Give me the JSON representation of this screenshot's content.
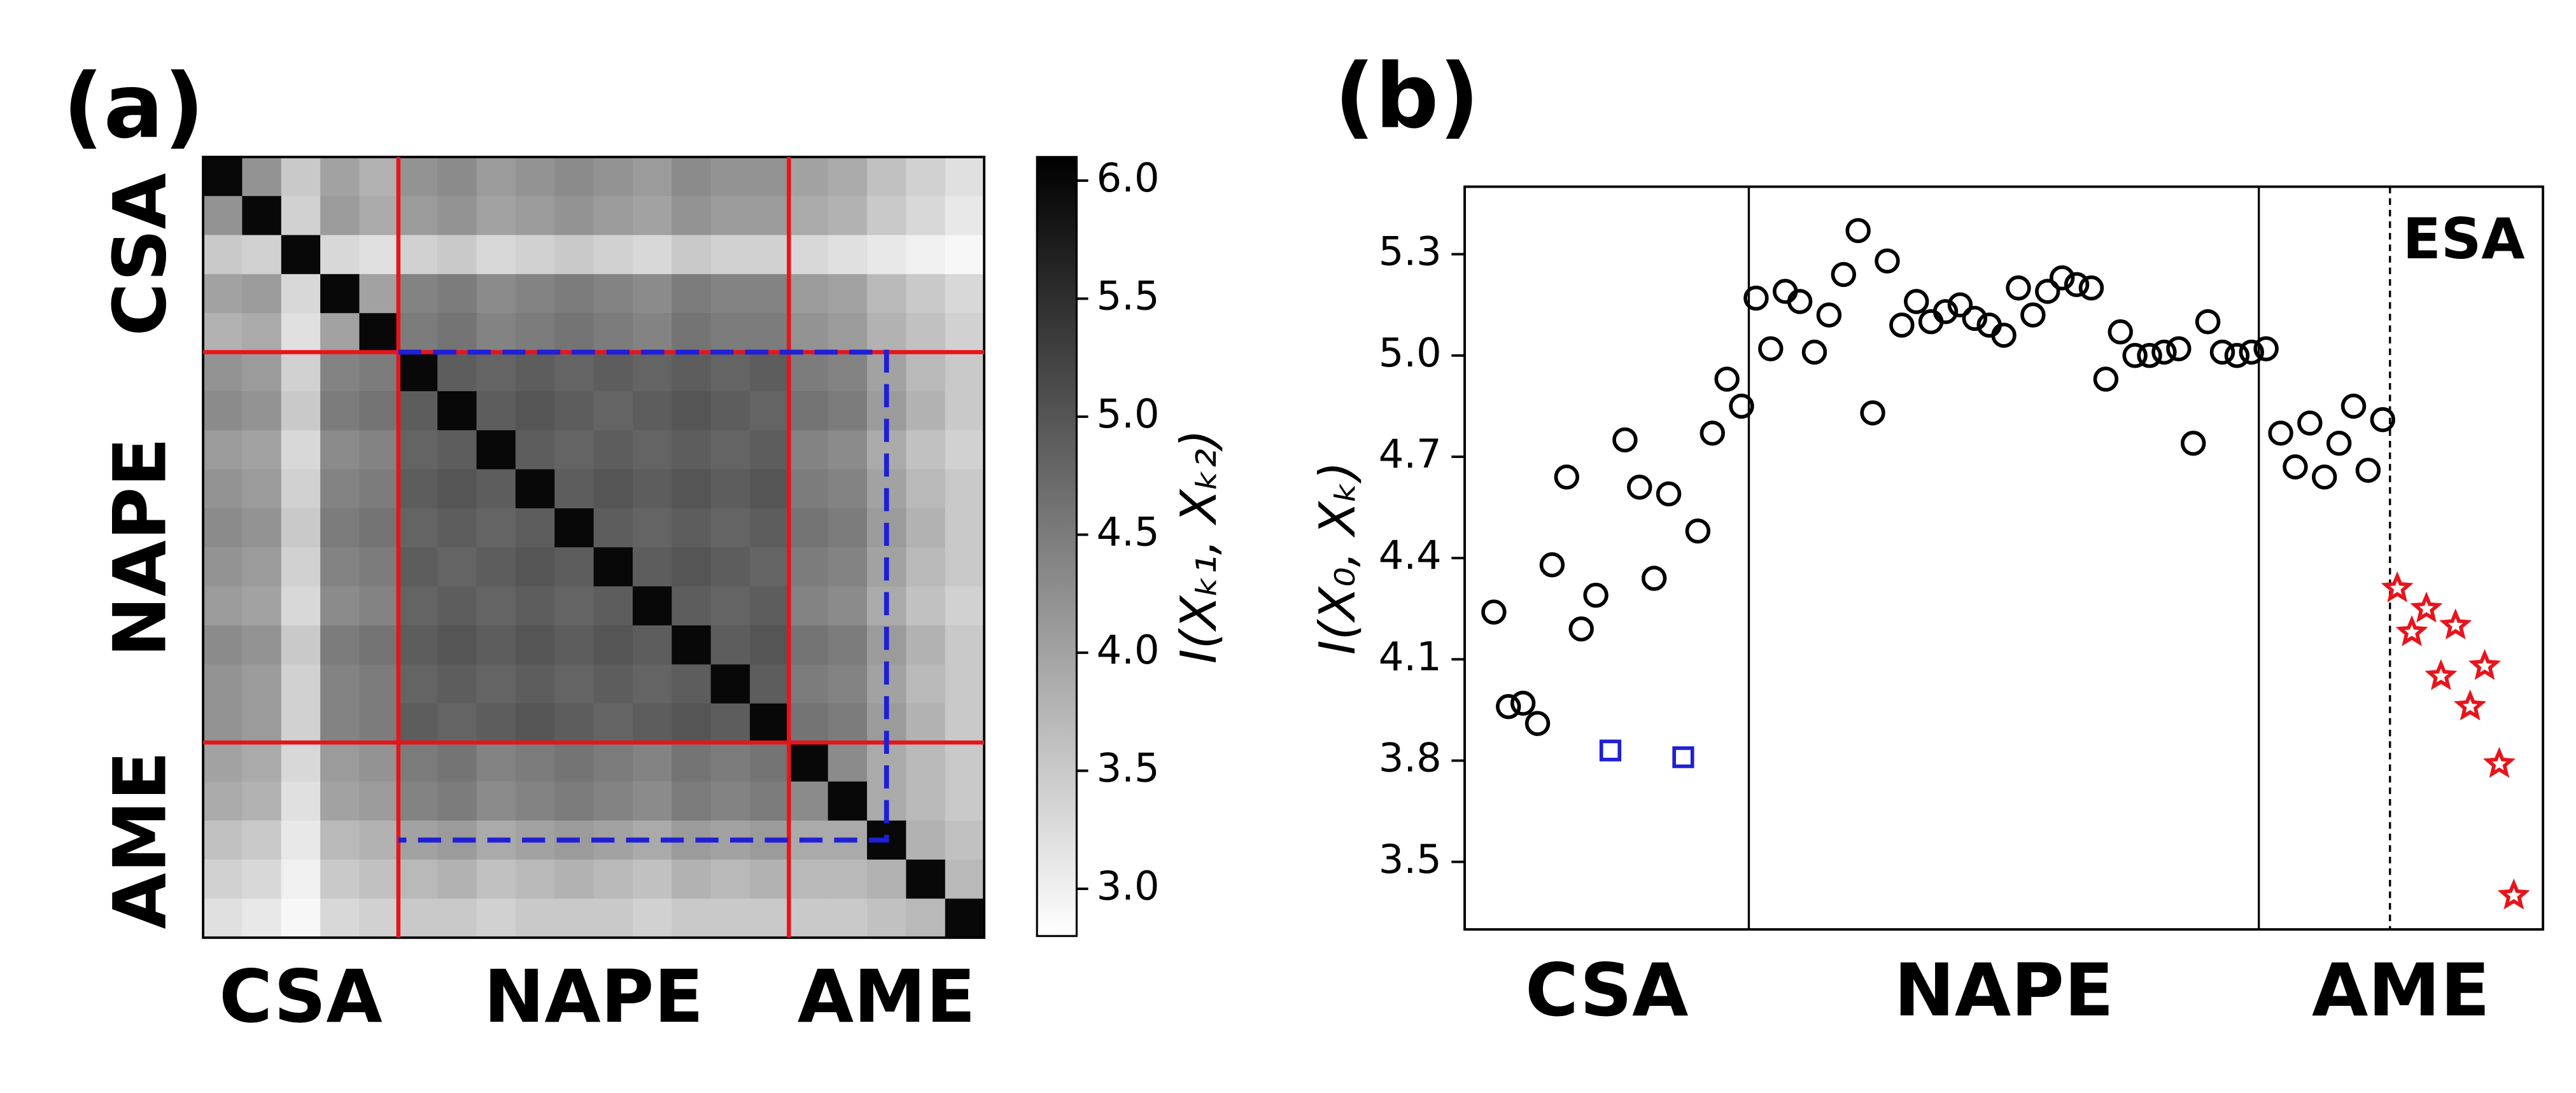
{
  "chart_data": [
    {
      "type": "heatmap",
      "panel": "(a)",
      "groups": [
        "CSA",
        "NAPE",
        "AME"
      ],
      "boundaries": [
        5,
        15
      ],
      "highlight": [
        5,
        17.5
      ],
      "colormap": "gray_r",
      "clim": [
        2.8,
        6.1
      ],
      "cticks": [
        {
          "value": 3.0,
          "label": "3.0"
        },
        {
          "value": 3.5,
          "label": "3.5"
        },
        {
          "value": 4.0,
          "label": "4.0"
        },
        {
          "value": 4.5,
          "label": "4.5"
        },
        {
          "value": 5.0,
          "label": "5.0"
        },
        {
          "value": 5.5,
          "label": "5.5"
        },
        {
          "value": 6.0,
          "label": "6.0"
        }
      ],
      "colorbar_label": "I(Xₖ₁, Xₖ₂)",
      "matrix": [
        [
          6.0,
          4.2,
          3.5,
          4.0,
          3.8,
          4.2,
          4.3,
          4.1,
          4.2,
          4.3,
          4.2,
          4.1,
          4.3,
          4.2,
          4.2,
          4.0,
          3.9,
          3.6,
          3.4,
          3.2
        ],
        [
          4.2,
          6.0,
          3.4,
          4.1,
          3.9,
          4.1,
          4.2,
          4.0,
          4.1,
          4.2,
          4.1,
          4.0,
          4.2,
          4.1,
          4.1,
          3.9,
          3.8,
          3.5,
          3.3,
          3.1
        ],
        [
          3.5,
          3.4,
          6.0,
          3.3,
          3.2,
          3.4,
          3.5,
          3.3,
          3.4,
          3.5,
          3.4,
          3.3,
          3.5,
          3.4,
          3.4,
          3.3,
          3.2,
          3.1,
          3.0,
          2.9
        ],
        [
          4.0,
          4.1,
          3.3,
          6.0,
          4.0,
          4.4,
          4.5,
          4.3,
          4.4,
          4.5,
          4.4,
          4.3,
          4.5,
          4.4,
          4.4,
          4.1,
          4.0,
          3.7,
          3.5,
          3.3
        ],
        [
          3.8,
          3.9,
          3.2,
          4.0,
          6.0,
          4.5,
          4.6,
          4.4,
          4.5,
          4.6,
          4.5,
          4.4,
          4.6,
          4.5,
          4.5,
          4.2,
          4.1,
          3.8,
          3.6,
          3.4
        ],
        [
          4.2,
          4.1,
          3.4,
          4.4,
          4.5,
          6.0,
          4.9,
          4.8,
          4.9,
          4.8,
          4.9,
          4.8,
          4.9,
          4.8,
          4.9,
          4.5,
          4.4,
          4.0,
          3.7,
          3.5
        ],
        [
          4.3,
          4.2,
          3.5,
          4.5,
          4.6,
          4.9,
          6.0,
          4.9,
          5.0,
          4.9,
          4.8,
          4.9,
          5.0,
          4.9,
          4.8,
          4.6,
          4.5,
          4.1,
          3.8,
          3.5
        ],
        [
          4.1,
          4.0,
          3.3,
          4.3,
          4.4,
          4.8,
          4.9,
          6.0,
          4.9,
          4.8,
          4.9,
          4.8,
          4.9,
          4.8,
          4.9,
          4.4,
          4.3,
          3.9,
          3.6,
          3.4
        ],
        [
          4.2,
          4.1,
          3.4,
          4.4,
          4.5,
          4.9,
          5.0,
          4.9,
          6.0,
          4.9,
          5.0,
          4.9,
          5.0,
          4.9,
          5.0,
          4.5,
          4.4,
          4.0,
          3.7,
          3.5
        ],
        [
          4.3,
          4.2,
          3.5,
          4.5,
          4.6,
          4.8,
          4.9,
          4.8,
          4.9,
          6.0,
          4.9,
          4.8,
          4.9,
          4.8,
          4.9,
          4.6,
          4.5,
          4.1,
          3.8,
          3.5
        ],
        [
          4.2,
          4.1,
          3.4,
          4.4,
          4.5,
          4.9,
          4.8,
          4.9,
          5.0,
          4.9,
          6.0,
          4.9,
          5.0,
          4.9,
          4.8,
          4.5,
          4.4,
          4.0,
          3.7,
          3.5
        ],
        [
          4.1,
          4.0,
          3.3,
          4.3,
          4.4,
          4.8,
          4.9,
          4.8,
          4.9,
          4.8,
          4.9,
          6.0,
          4.9,
          4.8,
          4.9,
          4.4,
          4.3,
          3.9,
          3.6,
          3.4
        ],
        [
          4.3,
          4.2,
          3.5,
          4.5,
          4.6,
          4.9,
          5.0,
          4.9,
          5.0,
          4.9,
          5.0,
          4.9,
          6.0,
          4.9,
          5.0,
          4.6,
          4.5,
          4.1,
          3.8,
          3.5
        ],
        [
          4.2,
          4.1,
          3.4,
          4.4,
          4.5,
          4.8,
          4.9,
          4.8,
          4.9,
          4.8,
          4.9,
          4.8,
          4.9,
          6.0,
          4.9,
          4.5,
          4.4,
          4.0,
          3.7,
          3.5
        ],
        [
          4.2,
          4.1,
          3.4,
          4.4,
          4.5,
          4.9,
          4.8,
          4.9,
          5.0,
          4.9,
          4.8,
          4.9,
          5.0,
          4.9,
          6.0,
          4.6,
          4.5,
          4.1,
          3.8,
          3.5
        ],
        [
          4.0,
          3.9,
          3.3,
          4.1,
          4.2,
          4.5,
          4.6,
          4.4,
          4.5,
          4.6,
          4.5,
          4.4,
          4.6,
          4.5,
          4.6,
          6.0,
          4.3,
          3.9,
          3.7,
          3.5
        ],
        [
          3.9,
          3.8,
          3.2,
          4.0,
          4.1,
          4.4,
          4.5,
          4.3,
          4.4,
          4.5,
          4.4,
          4.3,
          4.5,
          4.4,
          4.5,
          4.3,
          6.0,
          3.9,
          3.7,
          3.5
        ],
        [
          3.6,
          3.5,
          3.1,
          3.7,
          3.8,
          4.0,
          4.1,
          3.9,
          4.0,
          4.1,
          4.0,
          3.9,
          4.1,
          4.0,
          4.1,
          3.9,
          3.9,
          6.0,
          3.8,
          3.6
        ],
        [
          3.4,
          3.3,
          3.0,
          3.5,
          3.6,
          3.7,
          3.8,
          3.6,
          3.7,
          3.8,
          3.7,
          3.6,
          3.8,
          3.7,
          3.8,
          3.7,
          3.7,
          3.8,
          6.0,
          3.7
        ],
        [
          3.2,
          3.1,
          2.9,
          3.3,
          3.4,
          3.5,
          3.5,
          3.4,
          3.5,
          3.5,
          3.5,
          3.4,
          3.5,
          3.5,
          3.5,
          3.5,
          3.5,
          3.6,
          3.7,
          6.0
        ]
      ]
    },
    {
      "type": "scatter",
      "panel": "(b)",
      "ylabel": "I(X₀, Xₖ)",
      "groups": [
        "CSA",
        "NAPE",
        "AME"
      ],
      "boundaries": [
        17.5,
        52.5
      ],
      "dashed_boundary": 61.5,
      "annotation": "ESA",
      "xlim": [
        -2,
        72
      ],
      "ylim": [
        3.3,
        5.5
      ],
      "yticks": [
        3.5,
        3.8,
        4.1,
        4.4,
        4.7,
        {
          "value": 5.0,
          "label": "5.0"
        },
        5.3
      ],
      "series": [
        {
          "marker": "circle",
          "color": "#000000",
          "x": [
            0,
            1,
            2,
            3,
            4,
            5,
            6,
            7,
            9,
            10,
            11,
            12,
            14,
            15,
            16,
            17,
            18,
            19,
            20,
            21,
            22,
            23,
            24,
            25,
            26,
            27,
            28,
            29,
            30,
            31,
            32,
            33,
            34,
            35,
            36,
            37,
            38,
            39,
            40,
            41,
            42,
            43,
            44,
            45,
            46,
            47,
            48,
            49,
            50,
            51,
            52,
            53,
            54,
            55,
            56,
            57,
            58,
            59,
            60,
            61
          ],
          "values": [
            4.24,
            3.96,
            3.97,
            3.91,
            4.38,
            4.64,
            4.19,
            4.29,
            4.75,
            4.61,
            4.34,
            4.59,
            4.48,
            4.77,
            4.93,
            4.85,
            5.17,
            5.02,
            5.19,
            5.16,
            5.01,
            5.12,
            5.24,
            5.37,
            4.83,
            5.28,
            5.09,
            5.16,
            5.1,
            5.13,
            5.15,
            5.11,
            5.09,
            5.06,
            5.2,
            5.12,
            5.19,
            5.23,
            5.21,
            5.2,
            4.93,
            5.07,
            5.0,
            5.0,
            5.01,
            5.02,
            4.74,
            5.1,
            5.01,
            5.0,
            5.01,
            5.02,
            4.77,
            4.67,
            4.8,
            4.64,
            4.74,
            4.85,
            4.66,
            4.81
          ]
        },
        {
          "marker": "square",
          "color": "#1f1fd6",
          "x": [
            8,
            13
          ],
          "values": [
            3.83,
            3.81
          ]
        },
        {
          "marker": "star",
          "color": "#e8141b",
          "x": [
            62,
            63,
            64,
            65,
            66,
            67,
            68,
            69,
            70
          ],
          "values": [
            4.31,
            4.18,
            4.25,
            4.05,
            4.2,
            3.96,
            4.08,
            3.79,
            3.4
          ]
        }
      ]
    }
  ]
}
